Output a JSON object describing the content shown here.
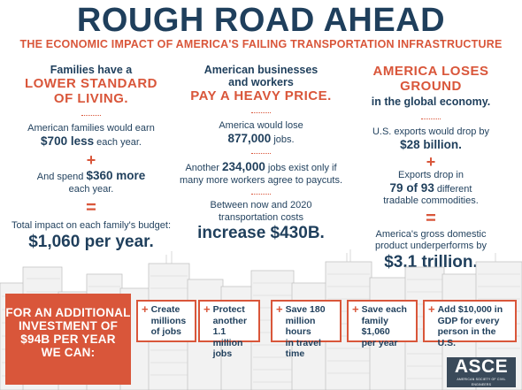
{
  "title": "ROUGH ROAD AHEAD",
  "subtitle": "THE ECONOMIC IMPACT OF AMERICA'S FAILING TRANSPORTATION INFRASTRUCTURE",
  "col1": {
    "head1": "Families have a",
    "head2a": "LOWER STANDARD",
    "head2b": "OF LIVING.",
    "earn_pre": "American families would earn",
    "earn_amt": "$700 less",
    "earn_post": "each year.",
    "plus": "+",
    "spend_pre": "And spend",
    "spend_amt": "$360 more",
    "spend_post": "each year.",
    "equals": "=",
    "total_label": "Total impact on each family's budget:",
    "total_value": "$1,060 per year."
  },
  "col2": {
    "head1a": "American businesses",
    "head1b": "and workers",
    "head2": "PAY A HEAVY PRICE.",
    "lose_pre": "America would lose",
    "lose_amt": "877,000",
    "lose_post": "jobs.",
    "another_pre": "Another",
    "another_amt": "234,000",
    "another_post": "jobs exist only if",
    "another_line2": "many more workers agree to paycuts.",
    "between_a": "Between now and 2020",
    "between_b": "transportation costs",
    "increase": "increase $430B."
  },
  "col3": {
    "head2": "AMERICA LOSES GROUND",
    "head1": "in the global economy.",
    "exports_pre": "U.S. exports would drop by",
    "exports_amt": "$28 billion.",
    "plus": "+",
    "drop_a": "Exports drop in",
    "drop_amt": "79 of 93",
    "drop_post": "different",
    "drop_c": "tradable commodities.",
    "equals": "=",
    "gdp_a": "America's gross domestic",
    "gdp_b": "product underperforms by",
    "gdp_value": "$3.1 trillion."
  },
  "cta": {
    "line1": "FOR AN ADDITIONAL",
    "line2": "INVESTMENT OF",
    "line3": "$94B PER YEAR",
    "line4": "WE CAN:"
  },
  "benefits": [
    {
      "plus": "+",
      "l1": "Create",
      "l2": "millions",
      "l3": "of jobs"
    },
    {
      "plus": "+",
      "l1": "Protect",
      "l2": "another 1.1",
      "l3": "million jobs"
    },
    {
      "plus": "+",
      "l1": "Save 180",
      "l2": "million hours",
      "l3": "in travel time"
    },
    {
      "plus": "+",
      "l1": "Save each",
      "l2": "family $1,060",
      "l3": "per year"
    },
    {
      "plus": "+",
      "l1": "Add $10,000 in",
      "l2": "GDP for every",
      "l3": "person in the U.S."
    }
  ],
  "logo": {
    "text": "ASCE",
    "sub": "AMERICAN SOCIETY OF CIVIL ENGINEERS"
  },
  "colors": {
    "navy": "#1f3f5c",
    "accent": "#d9563a",
    "logo_bg": "#3a4a5a"
  }
}
